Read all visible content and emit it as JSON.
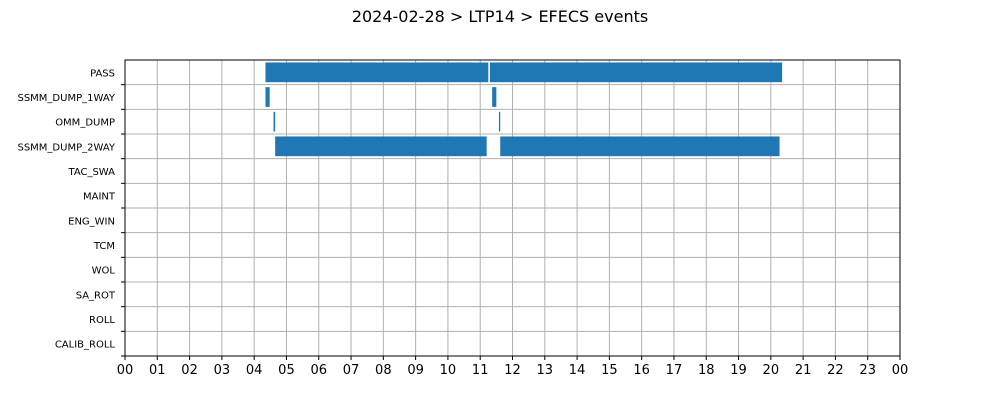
{
  "chart_data": {
    "type": "bar",
    "orientation": "horizontal",
    "title": "2024-02-28 > LTP14 > EFECS events",
    "xlabel": "",
    "ylabel": "",
    "x_unit": "hours",
    "xlim": [
      0,
      24
    ],
    "x_ticks": [
      0,
      1,
      2,
      3,
      4,
      5,
      6,
      7,
      8,
      9,
      10,
      11,
      12,
      13,
      14,
      15,
      16,
      17,
      18,
      19,
      20,
      21,
      22,
      23,
      24
    ],
    "x_tick_labels": [
      "00",
      "01",
      "02",
      "03",
      "04",
      "05",
      "06",
      "07",
      "08",
      "09",
      "10",
      "11",
      "12",
      "13",
      "14",
      "15",
      "16",
      "17",
      "18",
      "19",
      "20",
      "21",
      "22",
      "23",
      "00"
    ],
    "categories": [
      "PASS",
      "SSMM_DUMP_1WAY",
      "OMM_DUMP",
      "SSMM_DUMP_2WAY",
      "TAC_SWA",
      "MAINT",
      "ENG_WIN",
      "TCM",
      "WOL",
      "SA_ROT",
      "ROLL",
      "CALIB_ROLL"
    ],
    "grid": true,
    "legend": "none",
    "bar_color": "#1f77b4",
    "events": [
      {
        "category": "PASS",
        "start": 4.35,
        "end": 11.25
      },
      {
        "category": "PASS",
        "start": 11.3,
        "end": 20.35
      },
      {
        "category": "SSMM_DUMP_1WAY",
        "start": 4.35,
        "end": 4.48
      },
      {
        "category": "SSMM_DUMP_1WAY",
        "start": 11.37,
        "end": 11.5
      },
      {
        "category": "OMM_DUMP",
        "start": 4.6,
        "end": 4.65
      },
      {
        "category": "OMM_DUMP",
        "start": 11.58,
        "end": 11.62
      },
      {
        "category": "SSMM_DUMP_2WAY",
        "start": 4.65,
        "end": 11.2
      },
      {
        "category": "SSMM_DUMP_2WAY",
        "start": 11.62,
        "end": 20.27
      }
    ]
  }
}
